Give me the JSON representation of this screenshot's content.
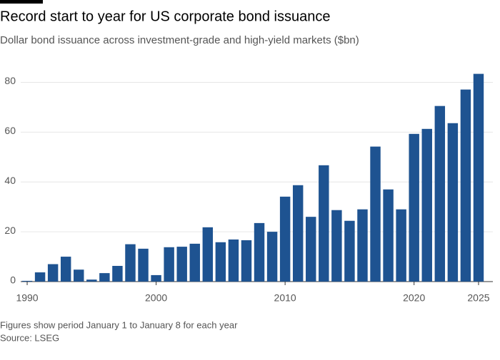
{
  "chart_data": {
    "type": "bar",
    "title": "Record start to year for US corporate bond issuance",
    "subtitle": "Dollar bond issuance across investment-grade and high-yield markets ($bn)",
    "note": "Figures show period January 1 to January 8 for each year",
    "source": "Source: LSEG",
    "x": [
      1990,
      1991,
      1992,
      1993,
      1994,
      1995,
      1996,
      1997,
      1998,
      1999,
      2000,
      2001,
      2002,
      2003,
      2004,
      2005,
      2006,
      2007,
      2008,
      2009,
      2010,
      2011,
      2012,
      2013,
      2014,
      2015,
      2016,
      2017,
      2018,
      2019,
      2020,
      2021,
      2022,
      2023,
      2024,
      2025
    ],
    "values": [
      0.3,
      3.7,
      7,
      10,
      4.8,
      0.8,
      3.4,
      6.3,
      15,
      13.2,
      2.6,
      13.8,
      14,
      15.2,
      21.8,
      15.8,
      16.9,
      16.6,
      23.5,
      20,
      34.1,
      38.7,
      26,
      46.7,
      28.7,
      24.4,
      29,
      54.2,
      37,
      29,
      59.3,
      61.3,
      70.5,
      63.6,
      77.1,
      83.4
    ],
    "color": "#1e5391",
    "xlim": [
      1989.5,
      2025.5
    ],
    "xticks": [
      1990,
      2000,
      2010,
      2020,
      2025
    ],
    "ylim": [
      0,
      85
    ],
    "yticks": [
      0,
      20,
      40,
      60,
      80
    ],
    "grid": true
  }
}
